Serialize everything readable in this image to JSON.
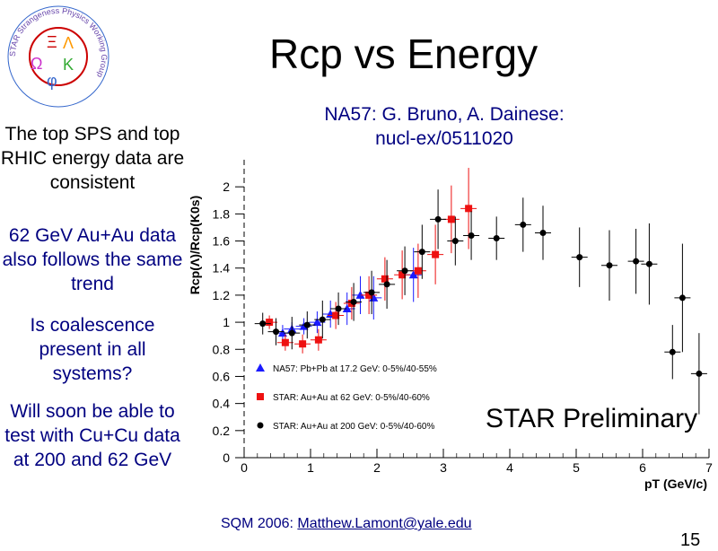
{
  "slide": {
    "title": "Rcp vs Energy",
    "reference": "NA57: G. Bruno, A. Dainese: nucl-ex/0511020",
    "notes": [
      "The top SPS and top RHIC energy data are consistent",
      "62 GeV Au+Au data also follows the same trend",
      "Is coalescence present in all systems?",
      "Will soon be able to test with Cu+Cu data at 200 and 62 GeV"
    ],
    "preliminary": "STAR Preliminary",
    "footer_text": "SQM 2006: ",
    "footer_email": "Matthew.Lamont@yale.edu",
    "page_number": "15"
  },
  "logo": {
    "ring_text": "STAR Strangeness Physics Working Group",
    "symbols": [
      "Ξ",
      "Λ",
      "Ω",
      "K",
      "φ"
    ],
    "colors": [
      "#cc0000",
      "#ff9900",
      "#cc33cc",
      "#33aa33",
      "#3366cc"
    ]
  },
  "chart_data": {
    "type": "scatter",
    "xlabel": "pT (GeV/c)",
    "ylabel": "Rcp(Λ)/Rcp(K0s)",
    "xlim": [
      0,
      7
    ],
    "ylim": [
      0,
      2.2
    ],
    "xticks": [
      0,
      1,
      2,
      3,
      4,
      5,
      6,
      7
    ],
    "yticks": [
      0,
      0.2,
      0.4,
      0.6,
      0.8,
      1,
      1.2,
      1.4,
      1.6,
      1.8,
      2
    ],
    "legend_position": "bottom-left",
    "series": [
      {
        "name": "NA57: Pb+Pb at 17.2 GeV: 0-5%/40-55%",
        "color": "#1a1aff",
        "marker": "triangle",
        "points": [
          {
            "x": 0.58,
            "y": 0.92,
            "err": 0.06
          },
          {
            "x": 0.72,
            "y": 0.95,
            "err": 0.05
          },
          {
            "x": 0.9,
            "y": 0.97,
            "err": 0.06
          },
          {
            "x": 1.1,
            "y": 1.0,
            "err": 0.08
          },
          {
            "x": 1.3,
            "y": 1.06,
            "err": 0.1
          },
          {
            "x": 1.55,
            "y": 1.1,
            "err": 0.12
          },
          {
            "x": 1.75,
            "y": 1.2,
            "err": 0.14
          },
          {
            "x": 1.95,
            "y": 1.18,
            "err": 0.16
          },
          {
            "x": 2.55,
            "y": 1.35,
            "err": 0.2
          }
        ]
      },
      {
        "name": "STAR: Au+Au at 62 GeV: 0-5%/40-60%",
        "color": "#ee1111",
        "marker": "square",
        "points": [
          {
            "x": 0.38,
            "y": 1.0,
            "err": 0.05
          },
          {
            "x": 0.62,
            "y": 0.85,
            "err": 0.06
          },
          {
            "x": 0.88,
            "y": 0.84,
            "err": 0.07
          },
          {
            "x": 1.12,
            "y": 0.87,
            "err": 0.08
          },
          {
            "x": 1.38,
            "y": 1.05,
            "err": 0.1
          },
          {
            "x": 1.62,
            "y": 1.14,
            "err": 0.12
          },
          {
            "x": 1.88,
            "y": 1.2,
            "err": 0.14
          },
          {
            "x": 2.12,
            "y": 1.32,
            "err": 0.16
          },
          {
            "x": 2.38,
            "y": 1.35,
            "err": 0.18
          },
          {
            "x": 2.62,
            "y": 1.38,
            "err": 0.2
          },
          {
            "x": 2.88,
            "y": 1.5,
            "err": 0.22
          },
          {
            "x": 3.12,
            "y": 1.76,
            "err": 0.25
          },
          {
            "x": 3.38,
            "y": 1.84,
            "err": 0.3
          }
        ]
      },
      {
        "name": "STAR: Au+Au at 200 GeV: 0-5%/40-60%",
        "color": "#000000",
        "marker": "circle",
        "points": [
          {
            "x": 0.28,
            "y": 0.99,
            "err": 0.08
          },
          {
            "x": 0.48,
            "y": 0.93,
            "err": 0.1
          },
          {
            "x": 0.72,
            "y": 0.92,
            "err": 0.12
          },
          {
            "x": 0.95,
            "y": 0.98,
            "err": 0.1
          },
          {
            "x": 1.18,
            "y": 1.02,
            "err": 0.14
          },
          {
            "x": 1.42,
            "y": 1.1,
            "err": 0.12
          },
          {
            "x": 1.65,
            "y": 1.15,
            "err": 0.14
          },
          {
            "x": 1.92,
            "y": 1.22,
            "err": 0.16
          },
          {
            "x": 2.15,
            "y": 1.28,
            "err": 0.18
          },
          {
            "x": 2.42,
            "y": 1.38,
            "err": 0.18
          },
          {
            "x": 2.68,
            "y": 1.52,
            "err": 0.2
          },
          {
            "x": 2.92,
            "y": 1.76,
            "err": 0.22
          },
          {
            "x": 3.18,
            "y": 1.6,
            "err": 0.18
          },
          {
            "x": 3.42,
            "y": 1.64,
            "err": 0.18
          },
          {
            "x": 3.8,
            "y": 1.62,
            "err": 0.16
          },
          {
            "x": 4.2,
            "y": 1.72,
            "err": 0.2
          },
          {
            "x": 4.5,
            "y": 1.66,
            "err": 0.2
          },
          {
            "x": 5.05,
            "y": 1.48,
            "err": 0.22
          },
          {
            "x": 5.5,
            "y": 1.42,
            "err": 0.26
          },
          {
            "x": 5.9,
            "y": 1.45,
            "err": 0.24
          },
          {
            "x": 6.1,
            "y": 1.43,
            "err": 0.3
          },
          {
            "x": 6.6,
            "y": 1.18,
            "err": 0.4
          },
          {
            "x": 6.45,
            "y": 0.78,
            "err": 0.2
          },
          {
            "x": 6.85,
            "y": 0.62,
            "err": 0.3
          }
        ]
      }
    ]
  }
}
